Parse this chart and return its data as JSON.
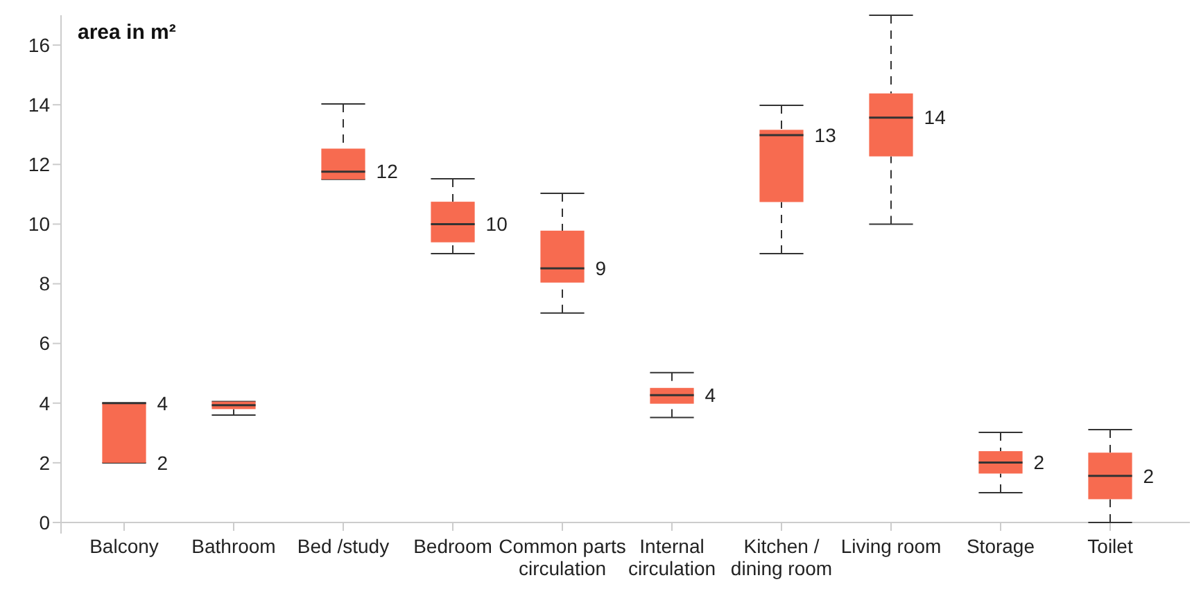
{
  "chart_data": {
    "type": "box",
    "title": "area in m²",
    "categories": [
      "Balcony",
      "Bathroom",
      "Bed /study",
      "Bedroom",
      "Common parts circulation",
      "Internal circulation",
      "Kitchen / dining room",
      "Living room",
      "Storage",
      "Toilet"
    ],
    "color": "#f76b50",
    "boxes": [
      {
        "low": 2,
        "q1": 2,
        "median": 4,
        "q3": 4,
        "high": 4
      },
      {
        "low": 3.6,
        "q1": 3.8,
        "median": 3.93,
        "q3": 4.05,
        "high": 4.05
      },
      {
        "low": 11.5,
        "q1": 11.5,
        "median": 11.76,
        "q3": 12.53,
        "high": 14.03
      },
      {
        "low": 9.01,
        "q1": 9.39,
        "median": 10,
        "q3": 10.75,
        "high": 11.52
      },
      {
        "low": 7.02,
        "q1": 8.04,
        "median": 8.52,
        "q3": 9.78,
        "high": 11.03
      },
      {
        "low": 3.52,
        "q1": 3.98,
        "median": 4.27,
        "q3": 4.51,
        "high": 5.02
      },
      {
        "low": 9.01,
        "q1": 10.74,
        "median": 12.98,
        "q3": 13.16,
        "high": 13.98
      },
      {
        "low": 10,
        "q1": 12.27,
        "median": 13.57,
        "q3": 14.38,
        "high": 17
      },
      {
        "low": 1,
        "q1": 1.64,
        "median": 2.01,
        "q3": 2.39,
        "high": 3.02
      },
      {
        "low": 0,
        "q1": 0.78,
        "median": 1.56,
        "q3": 2.34,
        "high": 3.11
      }
    ],
    "annotations": [
      {
        "text": "4",
        "x": "Balcony",
        "y": 4
      },
      {
        "text": "2",
        "x": "Balcony",
        "y": 2
      },
      {
        "text": "12",
        "x": "Bed /study",
        "y": 11.76
      },
      {
        "text": "10",
        "x": "Bedroom",
        "y": 10
      },
      {
        "text": "9",
        "x": "Common parts circulation",
        "y": 8.52
      },
      {
        "text": "4",
        "x": "Internal circulation",
        "y": 4.27
      },
      {
        "text": "13",
        "x": "Kitchen / dining room",
        "y": 12.98
      },
      {
        "text": "14",
        "x": "Living room",
        "y": 13.57
      },
      {
        "text": "2",
        "x": "Storage",
        "y": 2.01
      },
      {
        "text": "2",
        "x": "Toilet",
        "y": 1.56
      }
    ],
    "ylim": [
      0,
      17
    ],
    "yticks": [
      0,
      2,
      4,
      6,
      8,
      10,
      12,
      14,
      16
    ],
    "line_style": "dashed",
    "grid": false
  }
}
